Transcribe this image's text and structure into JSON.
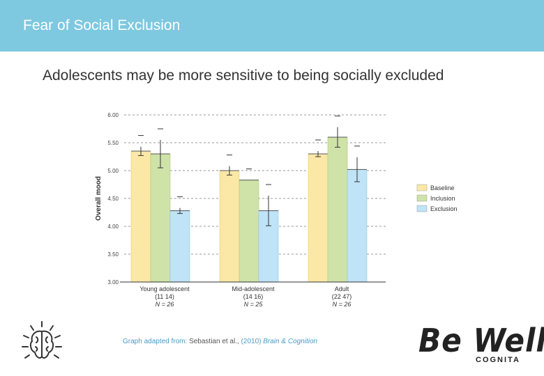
{
  "header": {
    "title": "Fear of Social Exclusion"
  },
  "subtitle": "Adolescents may be more sensitive to being socially excluded",
  "source": {
    "prefix": "Graph adapted from: ",
    "authors": "Sebastian et al., ",
    "year": "(2010) ",
    "journal": "Brain & Cognition"
  },
  "logo": {
    "brand": "Be Well",
    "company": "COGNITA"
  },
  "colors": {
    "header": "#7ec8e0",
    "baseline": "#fbe8a6",
    "inclusion": "#cfe3a8",
    "exclusion": "#bfe3f7"
  },
  "chart_data": {
    "type": "bar",
    "ylabel": "Overall mood",
    "xlabel": "",
    "ylim": [
      3.0,
      6.0
    ],
    "yticks": [
      "3.00",
      "3.50",
      "4.00",
      "4.50",
      "5.00",
      "5.50",
      "6.00"
    ],
    "grid": true,
    "legend_position": "right",
    "categories": [
      {
        "name": "Young adolescent",
        "ages": "(11  14)",
        "n": "N = 26"
      },
      {
        "name": "Mid-adolescent",
        "ages": "(14  16)",
        "n": "N = 25"
      },
      {
        "name": "Adult",
        "ages": "(22  47)",
        "n": "N = 26"
      }
    ],
    "series": [
      {
        "name": "Baseline",
        "color": "#fbe8a6",
        "values": [
          5.35,
          5.0,
          5.3
        ],
        "errors": [
          0.08,
          0.08,
          0.05
        ]
      },
      {
        "name": "Inclusion",
        "color": "#cfe3a8",
        "values": [
          5.3,
          4.83,
          5.6
        ],
        "errors": [
          0.25,
          0.0,
          0.18
        ]
      },
      {
        "name": "Exclusion",
        "color": "#bfe3f7",
        "values": [
          4.28,
          4.28,
          5.02
        ],
        "errors": [
          0.05,
          0.27,
          0.22
        ]
      }
    ]
  }
}
